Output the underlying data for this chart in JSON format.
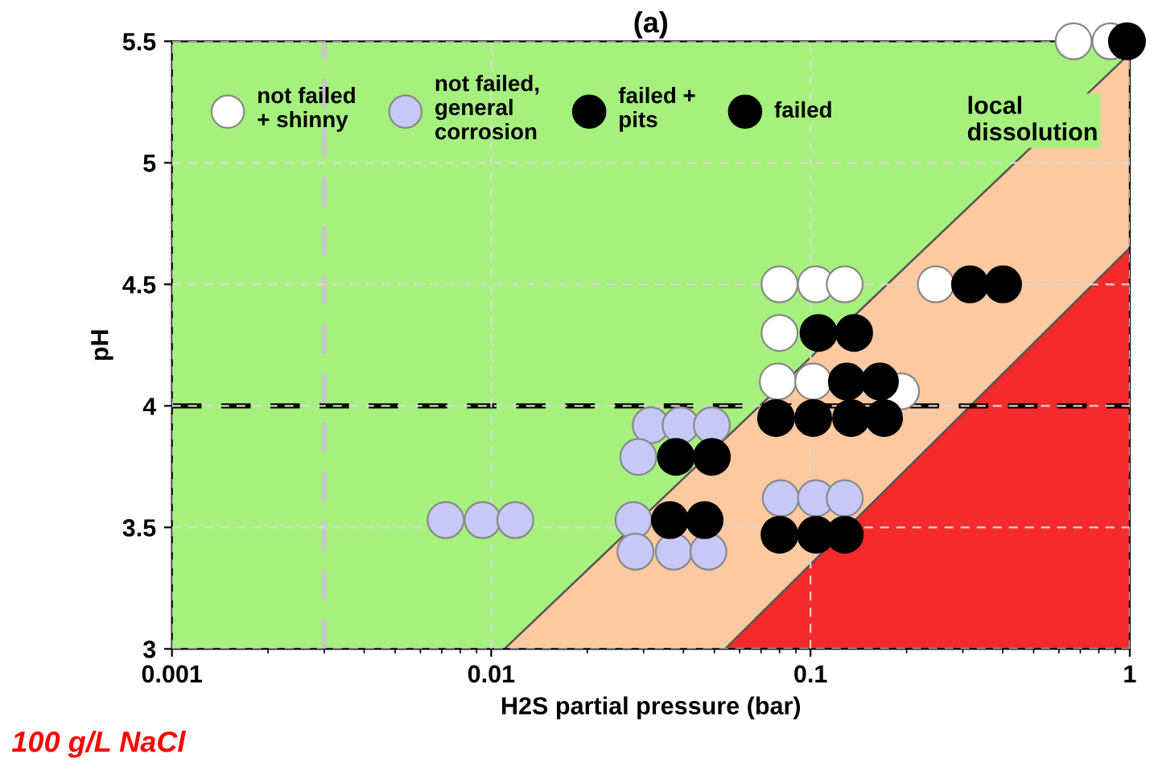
{
  "chart_data": {
    "type": "scatter",
    "title": "(a)",
    "xlabel": "H2S partial pressure (bar)",
    "ylabel": "pH",
    "log": "x",
    "xlim": [
      0.001,
      1
    ],
    "xticks": [
      {
        "value": 0.001,
        "label": "0.001"
      },
      {
        "value": 0.01,
        "label": "0.01"
      },
      {
        "value": 0.1,
        "label": "0.1"
      },
      {
        "value": 1,
        "label": "1"
      }
    ],
    "ylim": [
      3,
      5.5
    ],
    "yticks": [
      3,
      3.5,
      4,
      4.5,
      5,
      5.5
    ],
    "grid": true,
    "legend": "top left",
    "marker": "circle",
    "series": [
      {
        "type": "area",
        "marker": "none",
        "color": "#fcc9a0",
        "x": [
          0.011,
          1
        ],
        "values": [
          3,
          5.45
        ]
      },
      {
        "type": "area",
        "marker": "none",
        "color": "#f52a2a",
        "x": [
          0.054,
          1
        ],
        "values": [
          3,
          4.65
        ]
      },
      {
        "name": "not failed\n+ shinny",
        "color": "#ffffff",
        "x": [
          0.667,
          0.87,
          0.08,
          0.104,
          0.128,
          0.247,
          0.08,
          0.079,
          0.102,
          0.192
        ],
        "values": [
          5.5,
          5.5,
          4.5,
          4.5,
          4.5,
          4.5,
          4.3,
          4.1,
          4.1,
          4.06
        ]
      },
      {
        "name": "not failed,\ngeneral\ncorrosion",
        "color": "#c8c8f6",
        "x": [
          0.0316,
          0.0392,
          0.0491,
          0.0289,
          0.0807,
          0.104,
          0.128,
          0.0279,
          0.0283,
          0.0373,
          0.0479,
          0.0072,
          0.0094,
          0.0119
        ],
        "values": [
          3.92,
          3.92,
          3.92,
          3.79,
          3.62,
          3.62,
          3.62,
          3.53,
          3.4,
          3.4,
          3.4,
          3.53,
          3.53,
          3.53
        ]
      },
      {
        "name": "failed +\npits",
        "color": "#000000",
        "x": [
          0.316,
          0.401,
          0.106,
          0.137,
          0.13,
          0.165,
          0.078,
          0.102,
          0.134,
          0.17
        ],
        "values": [
          4.5,
          4.5,
          4.3,
          4.3,
          4.1,
          4.1,
          3.95,
          3.95,
          3.95,
          3.95
        ]
      },
      {
        "name": "failed",
        "color": "#000000",
        "x": [
          0.98,
          0.0379,
          0.0491,
          0.0363,
          0.0466,
          0.08,
          0.104,
          0.128
        ],
        "values": [
          5.5,
          3.79,
          3.79,
          3.53,
          3.53,
          3.47,
          3.47,
          3.47
        ]
      }
    ],
    "ref_lines": [
      {
        "axis": "x",
        "value": 0.003,
        "color": "#c8c8c8",
        "line_style": "dashed"
      },
      {
        "axis": "y",
        "value": 4,
        "color": "#000000",
        "line_style": "dashed"
      }
    ],
    "annotations": [
      "local\ndissolution",
      "100 g/L NaCl"
    ]
  }
}
